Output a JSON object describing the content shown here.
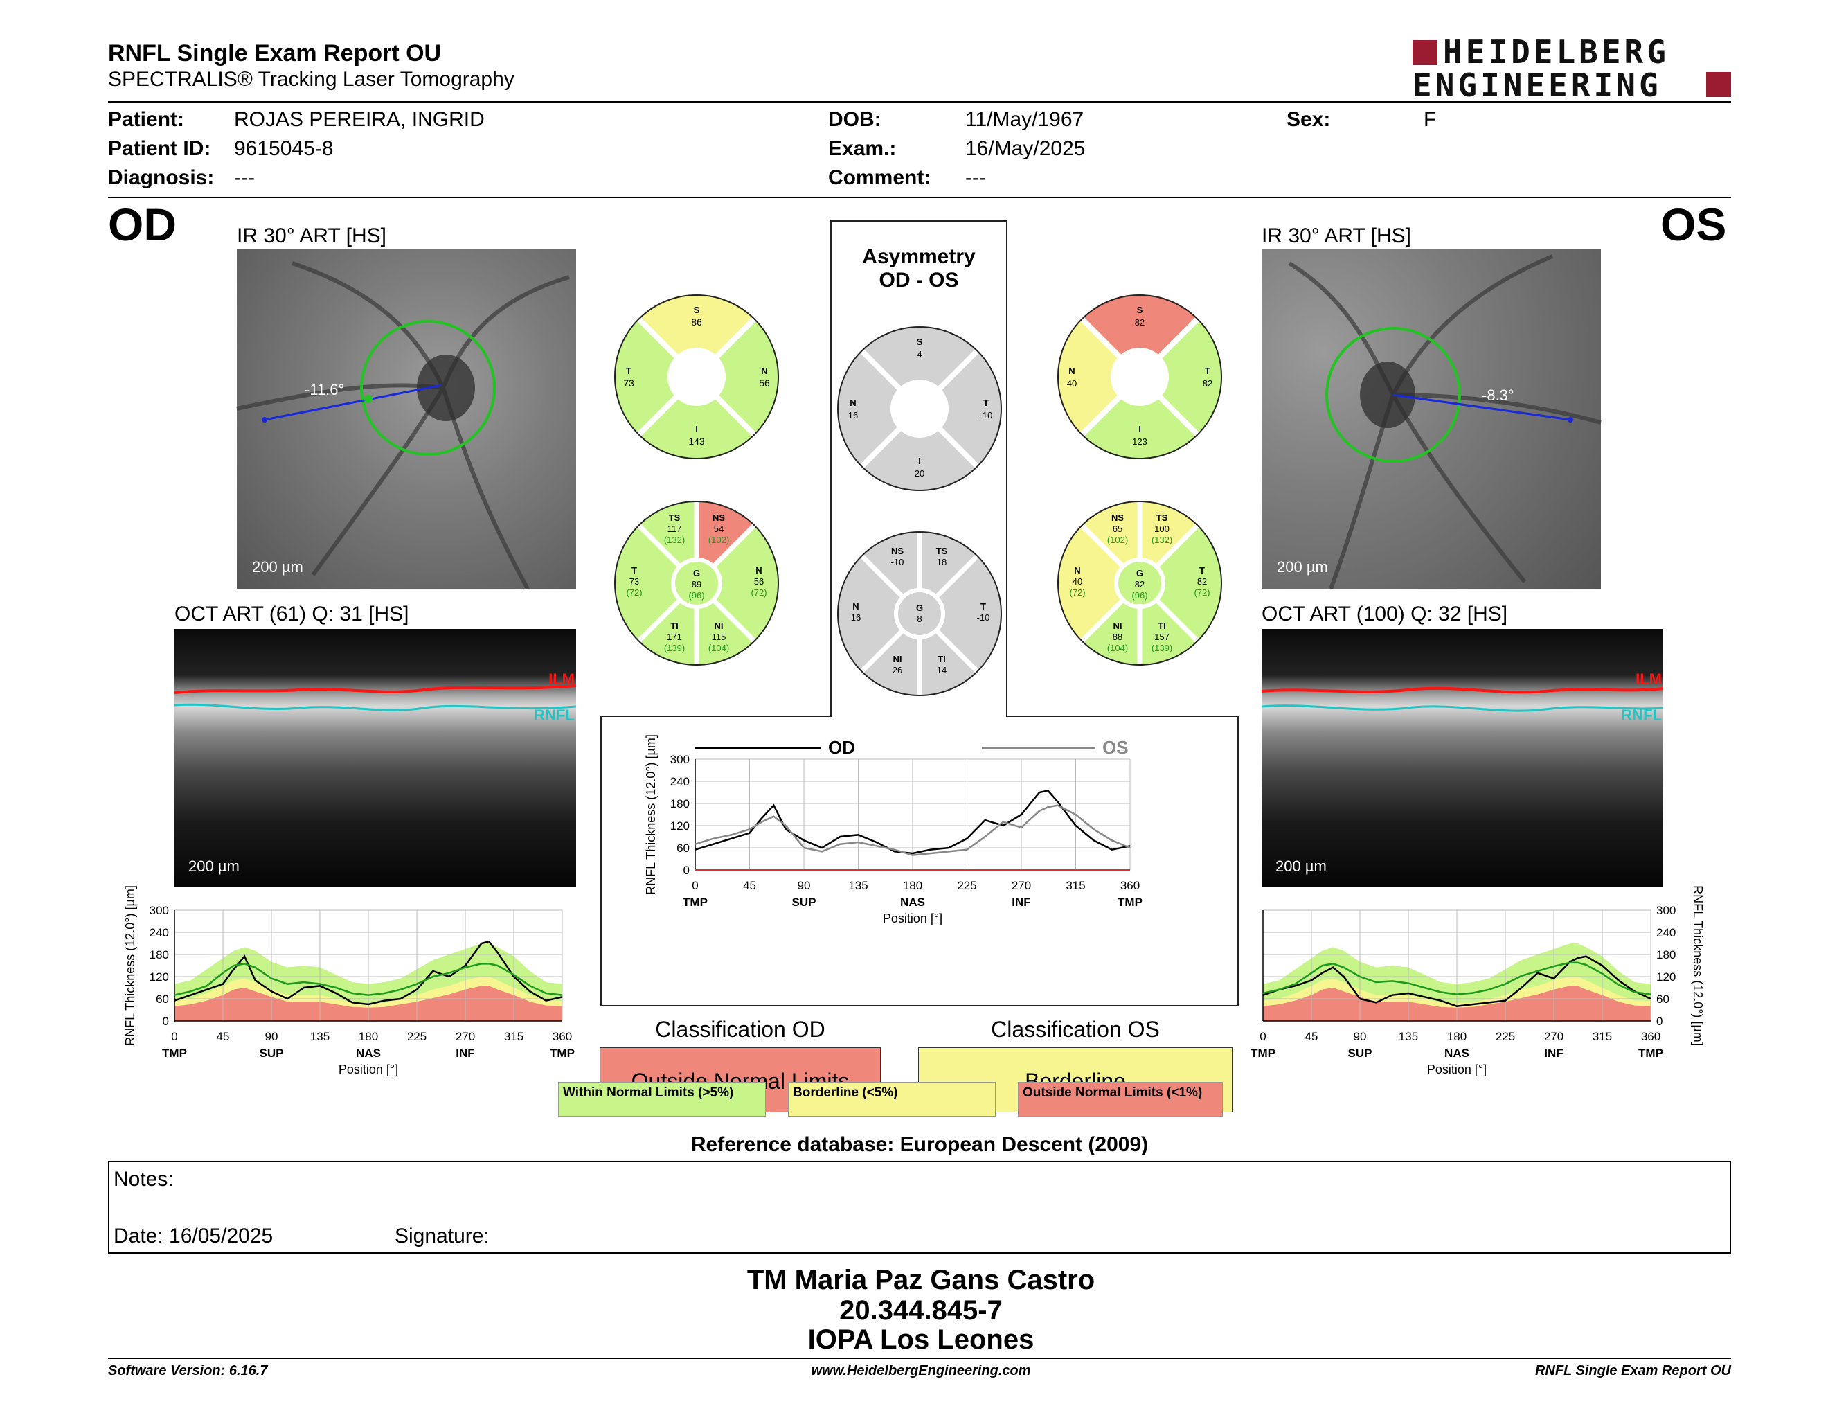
{
  "header": {
    "title": "RNFL Single Exam Report OU",
    "subtitle": "SPECTRALIS® Tracking Laser Tomography",
    "logo_top": "HEIDELBERG",
    "logo_bottom": "ENGINEERING"
  },
  "patient": {
    "name_label": "Patient:",
    "name": "ROJAS PEREIRA, INGRID",
    "id_label": "Patient ID:",
    "id": "9615045-8",
    "diagnosis_label": "Diagnosis:",
    "diagnosis": "---",
    "dob_label": "DOB:",
    "dob": "11/May/1967",
    "exam_label": "Exam.:",
    "exam": "16/May/2025",
    "comment_label": "Comment:",
    "comment": "---",
    "sex_label": "Sex:",
    "sex": "F"
  },
  "od": {
    "eye": "OD",
    "ir_title": "IR 30° ART [HS]",
    "angle": "-11.6°",
    "scale": "200 µm",
    "oct_title": "OCT ART (61) Q: 31 [HS]",
    "oct_scale": "200 µm",
    "ilm": "ILM",
    "rnfl": "RNFL",
    "sectors_simple": {
      "S": {
        "label": "S",
        "value": "86"
      },
      "T": {
        "label": "T",
        "value": "73"
      },
      "N": {
        "label": "N",
        "value": "56"
      },
      "I": {
        "label": "I",
        "value": "143"
      }
    },
    "sectors_detail": {
      "TS": {
        "label": "TS",
        "value": "117",
        "ref": "(132)"
      },
      "NS": {
        "label": "NS",
        "value": "54",
        "ref": "(102)"
      },
      "T": {
        "label": "T",
        "value": "73",
        "ref": "(72)"
      },
      "G": {
        "label": "G",
        "value": "89",
        "ref": "(96)"
      },
      "N": {
        "label": "N",
        "value": "56",
        "ref": "(72)"
      },
      "TI": {
        "label": "TI",
        "value": "171",
        "ref": "(139)"
      },
      "NI": {
        "label": "NI",
        "value": "115",
        "ref": "(104)"
      }
    },
    "classification_title": "Classification OD",
    "classification": "Outside Normal Limits"
  },
  "os": {
    "eye": "OS",
    "ir_title": "IR 30° ART [HS]",
    "angle": "-8.3°",
    "scale": "200 µm",
    "oct_title": "OCT ART (100) Q: 32 [HS]",
    "oct_scale": "200 µm",
    "ilm": "ILM",
    "rnfl": "RNFL",
    "sectors_simple": {
      "S": {
        "label": "S",
        "value": "82"
      },
      "N": {
        "label": "N",
        "value": "40"
      },
      "T": {
        "label": "T",
        "value": "82"
      },
      "I": {
        "label": "I",
        "value": "123"
      }
    },
    "sectors_detail": {
      "NS": {
        "label": "NS",
        "value": "65",
        "ref": "(102)"
      },
      "TS": {
        "label": "TS",
        "value": "100",
        "ref": "(132)"
      },
      "N": {
        "label": "N",
        "value": "40",
        "ref": "(72)"
      },
      "G": {
        "label": "G",
        "value": "82",
        "ref": "(96)"
      },
      "T": {
        "label": "T",
        "value": "82",
        "ref": "(72)"
      },
      "NI": {
        "label": "NI",
        "value": "88",
        "ref": "(104)"
      },
      "TI": {
        "label": "TI",
        "value": "157",
        "ref": "(139)"
      }
    },
    "classification_title": "Classification OS",
    "classification": "Borderline"
  },
  "asymmetry": {
    "title_1": "Asymmetry",
    "title_2": "OD - OS",
    "simple": {
      "S": {
        "label": "S",
        "value": "4"
      },
      "N": {
        "label": "N",
        "value": "16"
      },
      "T": {
        "label": "T",
        "value": "-10"
      },
      "I": {
        "label": "I",
        "value": "20"
      }
    },
    "detail": {
      "NS": {
        "label": "NS",
        "value": "-10"
      },
      "TS": {
        "label": "TS",
        "value": "18"
      },
      "N": {
        "label": "N",
        "value": "16"
      },
      "G": {
        "label": "G",
        "value": "8"
      },
      "T": {
        "label": "T",
        "value": "-10"
      },
      "NI": {
        "label": "NI",
        "value": "26"
      },
      "TI": {
        "label": "TI",
        "value": "14"
      }
    }
  },
  "legend": {
    "within": "Within Normal Limits (>5%)",
    "borderline": "Borderline (<5%)",
    "outside": "Outside Normal Limits (<1%)"
  },
  "colors": {
    "green": "#c8f58a",
    "yellow": "#f7f58f",
    "red": "#f0877b",
    "grey": "#d2d2d2",
    "brand_red": "#9b1b30",
    "fundus_circle": "#22c322",
    "angle_line": "#1a2ad8",
    "ilm_line": "#ff1414",
    "rnfl_line": "#22c4c4",
    "normal_mean": "#1d9a1d"
  },
  "chart_data": [
    {
      "type": "line",
      "id": "od_profile",
      "ylabel": "RNFL Thickness (12.0°) [µm]",
      "xlabel": "Position [°]",
      "ylim": [
        0,
        300
      ],
      "xlim": [
        0,
        360
      ],
      "yticks": [
        0,
        60,
        120,
        180,
        240,
        300
      ],
      "xticks": [
        0,
        45,
        90,
        135,
        180,
        225,
        270,
        315,
        360
      ],
      "region_labels": [
        "TMP",
        "SUP",
        "NAS",
        "INF",
        "TMP"
      ],
      "x": [
        0,
        15,
        30,
        45,
        55,
        65,
        75,
        90,
        105,
        120,
        135,
        150,
        165,
        180,
        195,
        210,
        225,
        240,
        255,
        270,
        285,
        292,
        300,
        315,
        330,
        345,
        360
      ],
      "series": [
        {
          "values": [
            55,
            70,
            85,
            100,
            140,
            175,
            110,
            80,
            60,
            90,
            95,
            75,
            50,
            45,
            55,
            60,
            85,
            135,
            120,
            150,
            210,
            215,
            185,
            120,
            80,
            55,
            65
          ]
        },
        {
          "values": [
            70,
            80,
            95,
            130,
            150,
            155,
            145,
            115,
            100,
            105,
            100,
            90,
            75,
            70,
            75,
            85,
            100,
            120,
            130,
            145,
            155,
            155,
            150,
            125,
            95,
            75,
            70
          ]
        }
      ],
      "bands": {
        "upper_green": [
          100,
          110,
          140,
          170,
          190,
          200,
          190,
          160,
          145,
          150,
          145,
          125,
          105,
          100,
          105,
          115,
          140,
          165,
          180,
          195,
          210,
          210,
          200,
          175,
          135,
          105,
          100
        ],
        "lower_yellow": [
          55,
          60,
          75,
          95,
          110,
          115,
          105,
          85,
          70,
          70,
          70,
          60,
          50,
          48,
          50,
          60,
          70,
          85,
          95,
          110,
          120,
          120,
          110,
          90,
          70,
          55,
          55
        ],
        "lower_red": [
          40,
          45,
          55,
          70,
          85,
          90,
          80,
          65,
          52,
          52,
          52,
          45,
          38,
          36,
          38,
          45,
          52,
          62,
          72,
          85,
          95,
          95,
          85,
          70,
          52,
          42,
          40
        ]
      }
    },
    {
      "type": "line",
      "id": "asymmetry_profile",
      "ylabel": "RNFL Thickness (12.0°) [µm]",
      "xlabel": "Position [°]",
      "ylim": [
        0,
        300
      ],
      "xlim": [
        0,
        360
      ],
      "yticks": [
        0,
        60,
        120,
        180,
        240,
        300
      ],
      "xticks": [
        0,
        45,
        90,
        135,
        180,
        225,
        270,
        315,
        360
      ],
      "region_labels": [
        "TMP",
        "SUP",
        "NAS",
        "INF",
        "TMP"
      ],
      "x": [
        0,
        15,
        30,
        45,
        55,
        65,
        75,
        90,
        105,
        120,
        135,
        150,
        165,
        180,
        195,
        210,
        225,
        240,
        255,
        270,
        285,
        292,
        300,
        315,
        330,
        345,
        360
      ],
      "series": [
        {
          "name": "OD",
          "values": [
            55,
            70,
            85,
            100,
            140,
            175,
            110,
            80,
            60,
            90,
            95,
            75,
            50,
            45,
            55,
            60,
            85,
            135,
            120,
            150,
            210,
            215,
            185,
            120,
            80,
            55,
            65
          ]
        },
        {
          "name": "OS",
          "values": [
            70,
            85,
            95,
            110,
            130,
            145,
            120,
            60,
            50,
            70,
            75,
            65,
            55,
            40,
            45,
            50,
            55,
            90,
            130,
            115,
            160,
            170,
            175,
            150,
            110,
            80,
            60
          ]
        }
      ]
    },
    {
      "type": "line",
      "id": "os_profile",
      "ylabel": "RNFL Thickness (12.0°) [µm]",
      "xlabel": "Position [°]",
      "ylim": [
        0,
        300
      ],
      "xlim": [
        0,
        360
      ],
      "yticks": [
        0,
        60,
        120,
        180,
        240,
        300
      ],
      "xticks": [
        0,
        45,
        90,
        135,
        180,
        225,
        270,
        315,
        360
      ],
      "region_labels": [
        "TMP",
        "SUP",
        "NAS",
        "INF",
        "TMP"
      ],
      "x": [
        0,
        15,
        30,
        45,
        55,
        65,
        75,
        90,
        105,
        120,
        135,
        150,
        165,
        180,
        195,
        210,
        225,
        240,
        255,
        270,
        285,
        292,
        300,
        315,
        330,
        345,
        360
      ],
      "series": [
        {
          "values": [
            70,
            85,
            95,
            110,
            130,
            145,
            120,
            60,
            50,
            70,
            75,
            65,
            55,
            40,
            45,
            50,
            55,
            90,
            130,
            115,
            160,
            170,
            175,
            150,
            110,
            80,
            60
          ]
        },
        {
          "values": [
            75,
            85,
            100,
            130,
            150,
            155,
            145,
            120,
            105,
            108,
            102,
            90,
            78,
            72,
            76,
            85,
            100,
            122,
            135,
            148,
            158,
            158,
            152,
            128,
            98,
            78,
            72
          ]
        }
      ],
      "bands": {
        "upper_green": [
          100,
          110,
          140,
          170,
          190,
          200,
          190,
          160,
          145,
          150,
          145,
          125,
          105,
          100,
          105,
          115,
          140,
          165,
          180,
          195,
          210,
          210,
          200,
          175,
          135,
          105,
          100
        ],
        "lower_yellow": [
          55,
          60,
          75,
          95,
          110,
          115,
          105,
          85,
          70,
          70,
          70,
          60,
          50,
          48,
          50,
          60,
          70,
          85,
          95,
          110,
          120,
          120,
          110,
          90,
          70,
          55,
          55
        ],
        "lower_red": [
          40,
          45,
          55,
          70,
          85,
          90,
          80,
          65,
          52,
          52,
          52,
          45,
          38,
          36,
          38,
          45,
          52,
          62,
          72,
          85,
          95,
          95,
          85,
          70,
          52,
          42,
          40
        ]
      }
    }
  ],
  "reference_db": "Reference database: European Descent (2009)",
  "notes": {
    "label": "Notes:",
    "date_label": "Date: 16/05/2025",
    "signature_label": "Signature:"
  },
  "signature_block": {
    "name": "TM Maria Paz Gans Castro",
    "rut": "20.344.845-7",
    "institution": "IOPA Los Leones"
  },
  "footer": {
    "software": "Software Version: 6.16.7",
    "website": "www.HeidelbergEngineering.com",
    "report": "RNFL Single Exam Report OU"
  }
}
